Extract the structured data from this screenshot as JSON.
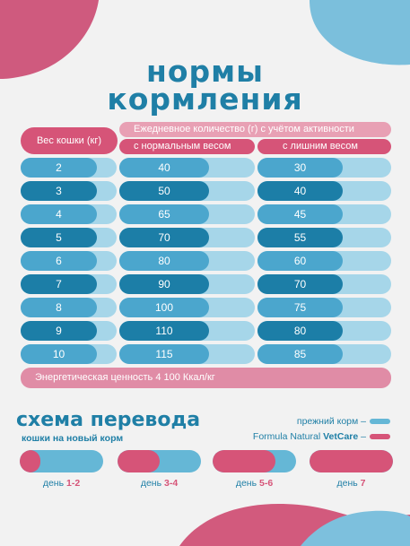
{
  "title": {
    "line1": "нормы",
    "line2": "кормления"
  },
  "table": {
    "weight_header": "Вес кошки (кг)",
    "amount_header": "Ежедневное количество (г) с учётом активности",
    "normal_header": "с нормальным весом",
    "excess_header": "с лишним весом",
    "rows": [
      {
        "weight": "2",
        "normal": "40",
        "excess": "30"
      },
      {
        "weight": "3",
        "normal": "50",
        "excess": "40"
      },
      {
        "weight": "4",
        "normal": "65",
        "excess": "45"
      },
      {
        "weight": "5",
        "normal": "70",
        "excess": "55"
      },
      {
        "weight": "6",
        "normal": "80",
        "excess": "60"
      },
      {
        "weight": "7",
        "normal": "90",
        "excess": "70"
      },
      {
        "weight": "8",
        "normal": "100",
        "excess": "75"
      },
      {
        "weight": "9",
        "normal": "110",
        "excess": "80"
      },
      {
        "weight": "10",
        "normal": "115",
        "excess": "85"
      }
    ],
    "energy": "Энергетическая ценность 4 100 Ккал/кг"
  },
  "transition": {
    "title": "схема перевода",
    "subtitle": "кошки на новый корм",
    "legend_old": "прежний корм –",
    "legend_new_prefix": "Formula Natural ",
    "legend_new_brand": "VetCare",
    "legend_new_suffix": " –",
    "day_word": "день",
    "steps": [
      {
        "days": "1-2",
        "new_share": 0.25
      },
      {
        "days": "3-4",
        "new_share": 0.5
      },
      {
        "days": "5-6",
        "new_share": 0.75
      },
      {
        "days": "7",
        "new_share": 1.0
      }
    ]
  },
  "colors": {
    "pink": "#d65478",
    "pink_light": "#e8a0b4",
    "blue_dark": "#1f7fa6",
    "blue_mid": "#2e93bf",
    "blue_light": "#a6d6e9",
    "background": "#f2f2f2"
  }
}
